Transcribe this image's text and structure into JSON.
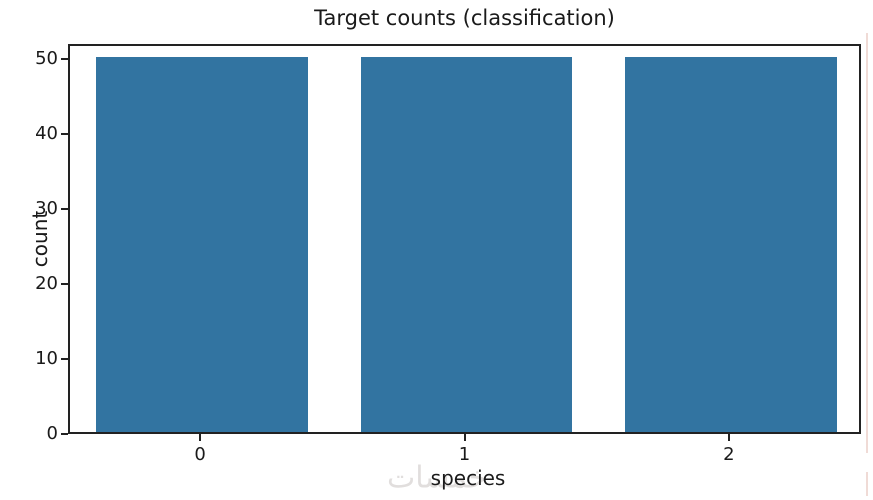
{
  "chart_data": {
    "type": "bar",
    "title": "Target counts (classification)",
    "categories": [
      "0",
      "1",
      "2"
    ],
    "values": [
      50,
      50,
      50
    ],
    "xlabel": "species",
    "ylabel": "count",
    "yticks": [
      0,
      10,
      20,
      30,
      40,
      50
    ],
    "ylim": [
      0,
      52
    ],
    "bar_color": "#3274a1",
    "bar_width_fraction": 0.8,
    "grid": false,
    "legend": null,
    "axis_color": "#222222"
  },
  "watermark": {
    "text": "خمسات",
    "color": "#c9c4c2"
  },
  "artifacts": {
    "right_edge_line_color": "#f0dbd6"
  }
}
